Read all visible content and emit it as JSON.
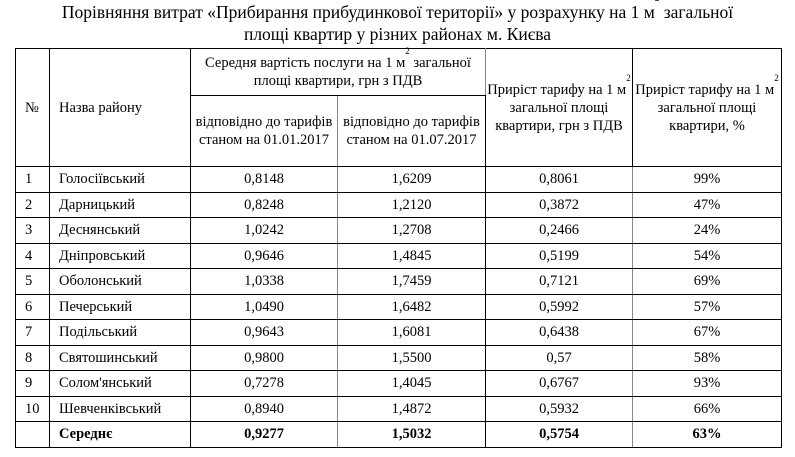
{
  "title": {
    "line1_before_sup": "Порівняння витрат «Прибирання прибудинкової території» у розрахунку на 1 м",
    "line1_sup": "2",
    "line1_after_sup": " загальної",
    "line2": "площі квартир у різних районах м. Києва"
  },
  "table": {
    "headers": {
      "num": "№",
      "name": "Назва району",
      "group_before_sup": "Середня вартість послуги на 1 м",
      "group_sup": "2",
      "group_after_sup": " загальної площі квартири, грн з ПДВ",
      "sub1": "відповідно до тарифів станом на 01.01.2017",
      "sub2": "відповідно до тарифів станом на 01.07.2017",
      "inc_before_sup": "Приріст тарифу на 1 м",
      "inc_sup": "2",
      "inc_after_sup": " загальної площі квартири, грн з ПДВ",
      "pct_before_sup": "Приріст тарифу на 1 м",
      "pct_sup": "2",
      "pct_after_sup": " загальної площі квартири, %"
    },
    "rows": [
      {
        "num": "1",
        "name": "Голосіївський",
        "v1": "0,8148",
        "v2": "1,6209",
        "inc": "0,8061",
        "pct": "99%"
      },
      {
        "num": "2",
        "name": "Дарницький",
        "v1": "0,8248",
        "v2": "1,2120",
        "inc": "0,3872",
        "pct": "47%"
      },
      {
        "num": "3",
        "name": "Деснянський",
        "v1": "1,0242",
        "v2": "1,2708",
        "inc": "0,2466",
        "pct": "24%"
      },
      {
        "num": "4",
        "name": "Дніпровський",
        "v1": "0,9646",
        "v2": "1,4845",
        "inc": "0,5199",
        "pct": "54%"
      },
      {
        "num": "5",
        "name": "Оболонський",
        "v1": "1,0338",
        "v2": "1,7459",
        "inc": "0,7121",
        "pct": "69%"
      },
      {
        "num": "6",
        "name": "Печерський",
        "v1": "1,0490",
        "v2": "1,6482",
        "inc": "0,5992",
        "pct": "57%"
      },
      {
        "num": "7",
        "name": "Подільський",
        "v1": "0,9643",
        "v2": "1,6081",
        "inc": "0,6438",
        "pct": "67%"
      },
      {
        "num": "8",
        "name": "Святошинський",
        "v1": "0,9800",
        "v2": "1,5500",
        "inc": "0,57",
        "pct": "58%"
      },
      {
        "num": "9",
        "name": "Солом'янський",
        "v1": "0,7278",
        "v2": "1,4045",
        "inc": "0,6767",
        "pct": "93%"
      },
      {
        "num": "10",
        "name": "Шевченківський",
        "v1": "0,8940",
        "v2": "1,4872",
        "inc": "0,5932",
        "pct": "66%"
      }
    ],
    "total": {
      "num": "",
      "name": "Середнє",
      "v1": "0,9277",
      "v2": "1,5032",
      "inc": "0,5754",
      "pct": "63%"
    }
  }
}
